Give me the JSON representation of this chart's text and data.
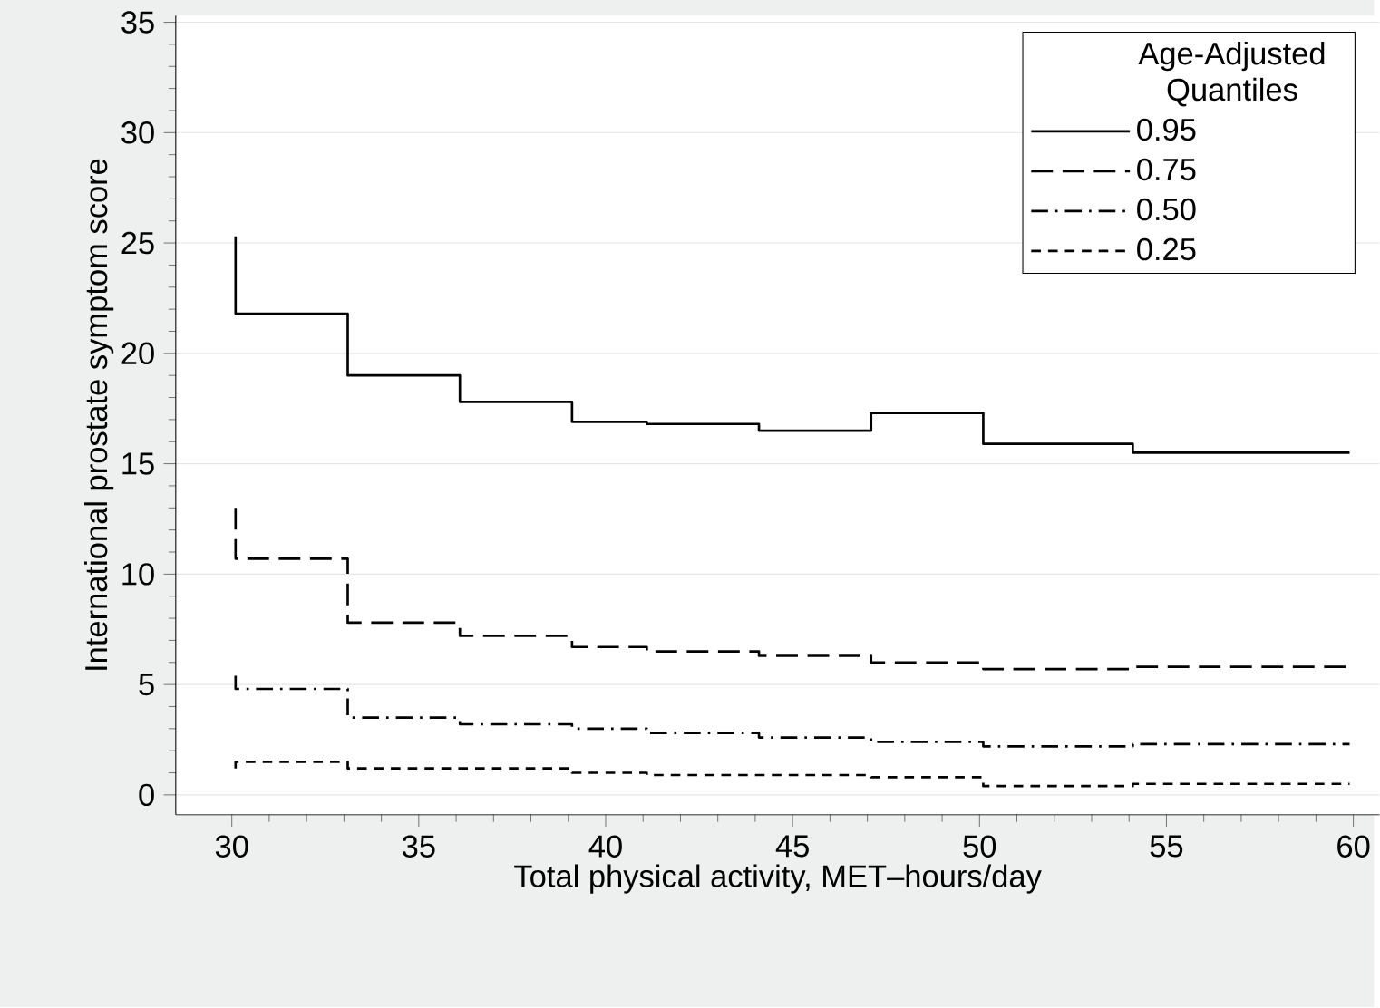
{
  "chart_data": {
    "type": "step",
    "xlabel": "Total physical activity, MET–hours/day",
    "ylabel": "International prostate symptom score",
    "legend_title": "Age-Adjusted Quantiles",
    "legend": "top right",
    "grid": "y",
    "x": [
      30.1,
      30.1,
      33.1,
      36.1,
      39.1,
      41.1,
      44.1,
      47.1,
      50.1,
      54.1,
      59.9
    ],
    "xlim": [
      28.5,
      60.7
    ],
    "xticks": [
      30,
      35,
      40,
      45,
      50,
      55,
      60
    ],
    "ylim": [
      -0.9,
      35.3
    ],
    "yticks": [
      0,
      5,
      10,
      15,
      20,
      25,
      30,
      35
    ],
    "series": [
      {
        "name": "0.95",
        "color": "#000000",
        "line_style": "solid",
        "values": [
          25.3,
          21.8,
          19.0,
          17.8,
          16.9,
          16.8,
          16.5,
          17.3,
          15.9,
          15.5,
          15.5
        ]
      },
      {
        "name": "0.75",
        "color": "#000000",
        "line_style": "longdashed",
        "values": [
          13.0,
          10.7,
          7.8,
          7.2,
          6.7,
          6.5,
          6.3,
          6.0,
          5.7,
          5.8,
          5.8
        ]
      },
      {
        "name": "0.50",
        "color": "#000000",
        "line_style": "dashdot",
        "values": [
          5.4,
          4.8,
          3.5,
          3.2,
          3.0,
          2.8,
          2.6,
          2.4,
          2.2,
          2.3,
          2.3
        ]
      },
      {
        "name": "0.25",
        "color": "#000000",
        "line_style": "dashed",
        "values": [
          1.2,
          1.5,
          1.2,
          1.2,
          1.0,
          0.9,
          0.9,
          0.8,
          0.4,
          0.5,
          0.5
        ]
      }
    ]
  }
}
